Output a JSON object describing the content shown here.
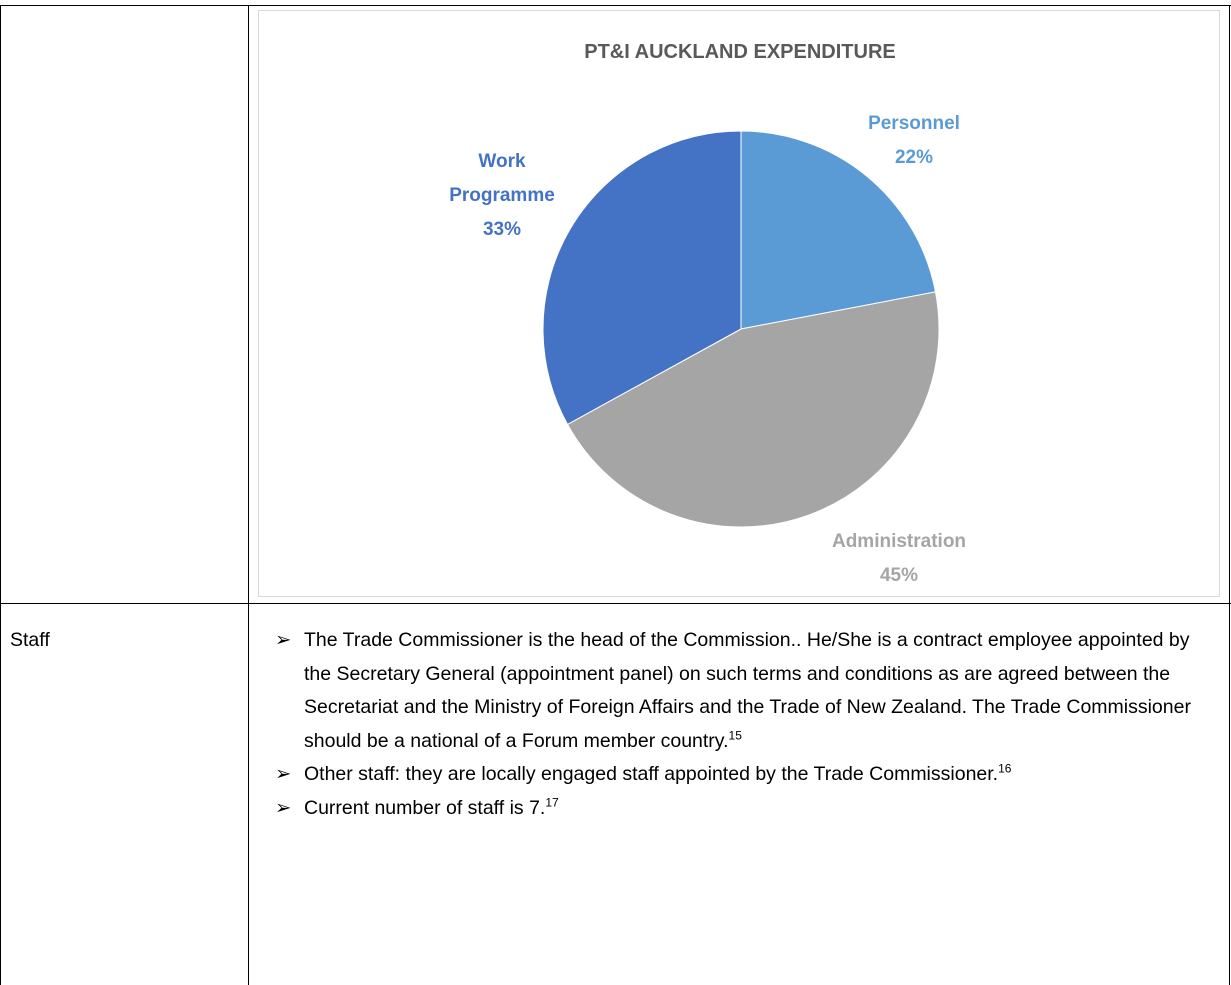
{
  "table": {
    "rows": [
      {
        "label": null
      },
      {
        "label": "Staff",
        "bullets": [
          {
            "text": "The Trade Commissioner is the head of the Commission.. He/She is a contract employee appointed by the Secretary General (appointment panel) on such terms and conditions as are agreed between the Secretariat and the Ministry of Foreign Affairs and the Trade of New Zealand. The Trade Commissioner should be a national of a Forum member country.",
            "footnote": "15"
          },
          {
            "text": "Other staff: they are locally engaged staff appointed by the Trade Commissioner.",
            "footnote": "16"
          },
          {
            "text": "Current number of staff is 7.",
            "footnote": "17"
          }
        ]
      }
    ]
  },
  "chart_data": {
    "type": "pie",
    "title": "PT&I AUCKLAND EXPENDITURE",
    "categories": [
      "Personnel",
      "Administration",
      "Work Programme"
    ],
    "values": [
      22,
      45,
      33
    ],
    "value_labels": [
      "22%",
      "45%",
      "33%"
    ],
    "colors": [
      "#5b9bd5",
      "#a5a5a5",
      "#4472c4"
    ]
  }
}
